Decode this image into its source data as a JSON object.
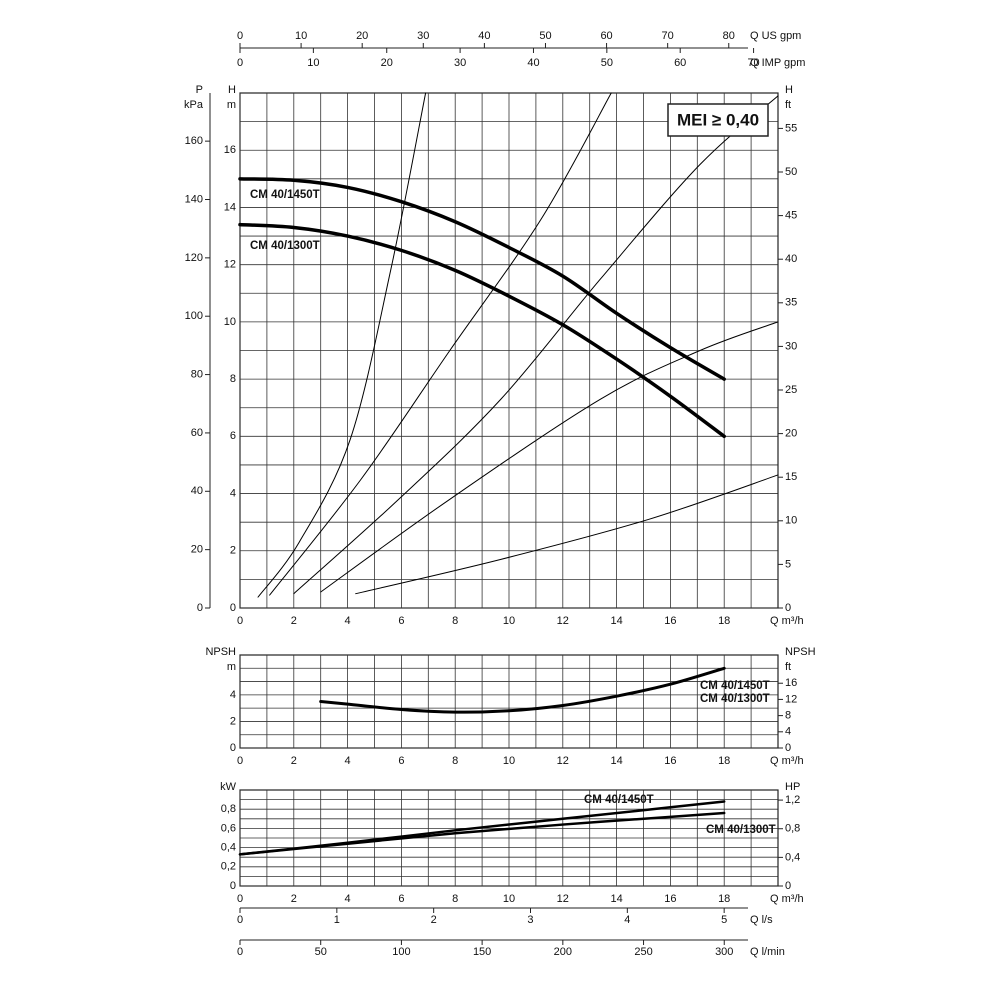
{
  "chart_data": [
    {
      "type": "line",
      "xlim": [
        0,
        20
      ],
      "ylim": [
        0,
        18
      ],
      "xticks": [
        0,
        2,
        4,
        6,
        8,
        10,
        12,
        14,
        16,
        18
      ],
      "xgrid": [
        1,
        3,
        5,
        7,
        9,
        11,
        13,
        15,
        17,
        19
      ],
      "yticks": [
        0,
        2,
        4,
        6,
        8,
        10,
        12,
        14,
        16
      ],
      "ygrid": [
        1,
        3,
        5,
        7,
        9,
        11,
        13,
        15,
        17
      ],
      "grid": true,
      "x_label": "Q m³/h",
      "y_label": "H",
      "y_unit": "m",
      "annotation": "MEI ≥ 0,40",
      "secondary_axes": [
        {
          "side": "left",
          "label": "P",
          "unit": "kPa",
          "lim": [
            0,
            176.5
          ],
          "ticks": [
            0,
            20,
            40,
            60,
            80,
            100,
            120,
            140,
            160
          ]
        },
        {
          "side": "right",
          "label": "H",
          "unit": "ft",
          "lim": [
            0,
            59.06
          ],
          "ticks": [
            0,
            5,
            10,
            15,
            20,
            25,
            30,
            35,
            40,
            45,
            50,
            55
          ]
        },
        {
          "side": "top",
          "label": "Q US gpm",
          "lim": [
            0,
            88.06
          ],
          "ticks": [
            0,
            10,
            20,
            30,
            40,
            50,
            60,
            70,
            80
          ]
        },
        {
          "side": "top2",
          "label": "Q IMP gpm",
          "lim": [
            0,
            73.33
          ],
          "ticks": [
            0,
            10,
            20,
            30,
            40,
            50,
            60,
            70
          ]
        }
      ],
      "series": [
        {
          "name": "CM 40/1450T",
          "color": "#000000",
          "line_width": 3.5,
          "x": [
            0,
            2,
            4,
            6,
            8,
            10,
            12,
            14,
            16,
            18
          ],
          "values": [
            15,
            14.95,
            14.7,
            14.2,
            13.5,
            12.6,
            11.6,
            10.3,
            9.1,
            8.0
          ]
        },
        {
          "name": "CM 40/1300T",
          "color": "#000000",
          "line_width": 3.5,
          "x": [
            0,
            2,
            4,
            6,
            8,
            10,
            12,
            14,
            16,
            18
          ],
          "values": [
            13.4,
            13.3,
            13.0,
            12.5,
            11.8,
            10.9,
            9.9,
            8.7,
            7.4,
            6.0
          ]
        },
        {
          "color": "#000000",
          "line_width": 1,
          "x": [
            0.67,
            2.2,
            4.1,
            5.6,
            6.9
          ],
          "values": [
            0.38,
            2.3,
            5.9,
            11.8,
            18
          ]
        },
        {
          "color": "#000000",
          "line_width": 1,
          "x": [
            1.1,
            4.5,
            7.8,
            11.2,
            13.8
          ],
          "values": [
            0.45,
            4.5,
            9,
            13.6,
            18
          ]
        },
        {
          "color": "#000000",
          "line_width": 1,
          "x": [
            2,
            5.9,
            9.7,
            13.4,
            17.1,
            20
          ],
          "values": [
            0.5,
            3.8,
            7.3,
            11.5,
            15.5,
            17.9
          ]
        },
        {
          "color": "#000000",
          "line_width": 1,
          "x": [
            3,
            7.8,
            13.4,
            17.1,
            20
          ],
          "values": [
            0.56,
            3.8,
            7.3,
            9.0,
            10
          ]
        },
        {
          "color": "#000000",
          "line_width": 1,
          "x": [
            4.3,
            9.7,
            15.2,
            20
          ],
          "values": [
            0.5,
            1.7,
            3.1,
            4.65
          ]
        }
      ]
    },
    {
      "type": "line",
      "xlim": [
        0,
        20
      ],
      "ylim": [
        0,
        7
      ],
      "xticks": [
        0,
        2,
        4,
        6,
        8,
        10,
        12,
        14,
        16,
        18
      ],
      "xgrid": [
        1,
        3,
        5,
        7,
        9,
        11,
        13,
        15,
        17,
        19
      ],
      "yticks": [
        0,
        2,
        4
      ],
      "ygrid": [
        1,
        3,
        5,
        6
      ],
      "grid": true,
      "x_label": "Q m³/h",
      "y_label": "NPSH",
      "y_unit": "m",
      "labels": [
        "CM 40/1450T",
        "CM 40/1300T"
      ],
      "secondary_axes": [
        {
          "side": "right",
          "label": "NPSH",
          "unit": "ft",
          "lim": [
            0,
            22.97
          ],
          "ticks": [
            0,
            4,
            8,
            12,
            16
          ]
        }
      ],
      "series": [
        {
          "color": "#000000",
          "line_width": 3,
          "x": [
            3,
            4,
            6,
            8,
            10,
            12,
            14,
            16,
            18
          ],
          "values": [
            3.5,
            3.3,
            2.9,
            2.7,
            2.8,
            3.2,
            3.9,
            4.8,
            6.0
          ]
        }
      ]
    },
    {
      "type": "line",
      "xlim": [
        0,
        20
      ],
      "ylim": [
        0,
        1
      ],
      "xticks": [
        0,
        2,
        4,
        6,
        8,
        10,
        12,
        14,
        16,
        18
      ],
      "xgrid": [
        1,
        3,
        5,
        7,
        9,
        11,
        13,
        15,
        17,
        19
      ],
      "yticks": [
        0,
        {
          "value": 0.2,
          "label": "0,2"
        },
        {
          "value": 0.4,
          "label": "0,4"
        },
        {
          "value": 0.6,
          "label": "0,6"
        },
        {
          "value": 0.8,
          "label": "0,8"
        }
      ],
      "ygrid": [
        0.1,
        0.3,
        0.5,
        0.7,
        0.9
      ],
      "grid": true,
      "x_label": "Q m³/h",
      "y_label": "kW",
      "secondary_axes": [
        {
          "side": "right",
          "label": "HP",
          "lim": [
            0,
            1.341
          ],
          "ticks": [
            0,
            {
              "value": 0.4,
              "label": "0,4"
            },
            {
              "value": 0.8,
              "label": "0,8"
            },
            {
              "value": 1.2,
              "label": "1,2"
            }
          ]
        },
        {
          "side": "bottom",
          "label": "Q l/s",
          "lim": [
            0,
            5.556
          ],
          "ticks": [
            0,
            1,
            2,
            3,
            4,
            5
          ]
        },
        {
          "side": "bottom2",
          "label": "Q l/min",
          "lim": [
            0,
            333.3
          ],
          "ticks": [
            0,
            50,
            100,
            150,
            200,
            250,
            300
          ]
        }
      ],
      "series": [
        {
          "name": "CM 40/1450T",
          "color": "#000000",
          "line_width": 2.5,
          "x": [
            0,
            4,
            8,
            12,
            16,
            18
          ],
          "values": [
            0.33,
            0.45,
            0.58,
            0.7,
            0.82,
            0.88
          ]
        },
        {
          "name": "CM 40/1300T",
          "color": "#000000",
          "line_width": 2.5,
          "x": [
            0,
            4,
            8,
            12,
            16,
            18
          ],
          "values": [
            0.33,
            0.44,
            0.55,
            0.64,
            0.72,
            0.76
          ]
        }
      ]
    }
  ]
}
